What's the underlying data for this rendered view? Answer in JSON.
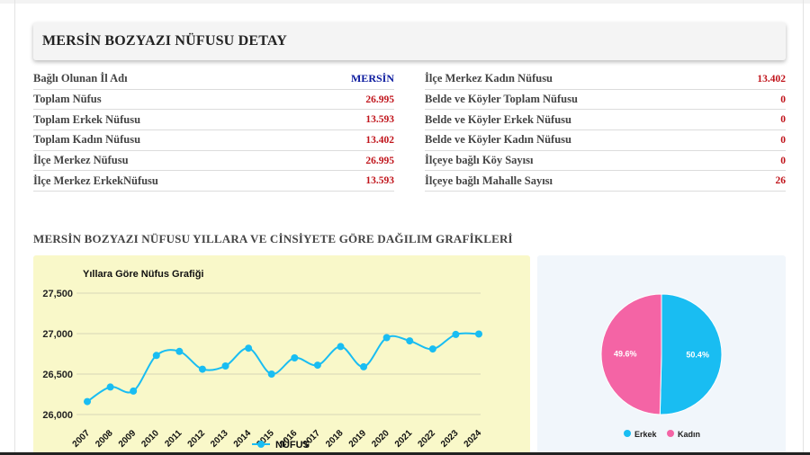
{
  "header": {
    "title": "MERSİN BOZYAZI NÜFUSU DETAY"
  },
  "stats_left": [
    {
      "label": "Bağlı Olunan İl Adı",
      "value": "MERSİN"
    },
    {
      "label": "Toplam Nüfus",
      "value": "26.995"
    },
    {
      "label": "Toplam Erkek Nüfusu",
      "value": "13.593"
    },
    {
      "label": "Toplam Kadın Nüfusu",
      "value": "13.402"
    },
    {
      "label": "İlçe Merkez Nüfusu",
      "value": "26.995"
    },
    {
      "label": "İlçe Merkez ErkekNüfusu",
      "value": "13.593"
    }
  ],
  "stats_right": [
    {
      "label": "İlçe Merkez Kadın Nüfusu",
      "value": "13.402"
    },
    {
      "label": "Belde ve Köyler Toplam Nüfusu",
      "value": "0"
    },
    {
      "label": "Belde ve Köyler Erkek Nüfusu",
      "value": "0"
    },
    {
      "label": "Belde ve Köyler Kadın Nüfusu",
      "value": "0"
    },
    {
      "label": "İlçeye bağlı Köy Sayısı",
      "value": "0"
    },
    {
      "label": "İlçeye bağlı Mahalle Sayısı",
      "value": "26"
    }
  ],
  "section_title": "MERSİN BOZYAZI NÜFUSU YILLARA VE CİNSİYETE GÖRE DAĞILIM GRAFİKLERİ",
  "colors": {
    "accent_red": "#c0141b",
    "accent_blue": "#0b1a9e",
    "line": "#19bdf2",
    "pie_male": "#19bdf2",
    "pie_female": "#f464a5"
  },
  "chart_data": [
    {
      "type": "line",
      "title": "Yıllara Göre Nüfus Grafiği",
      "categories": [
        "2007",
        "2008",
        "2009",
        "2010",
        "2011",
        "2012",
        "2013",
        "2014",
        "2015",
        "2016",
        "2017",
        "2018",
        "2019",
        "2020",
        "2021",
        "2022",
        "2023",
        "2024"
      ],
      "series": [
        {
          "name": "NÜFUS",
          "values": [
            26160,
            26340,
            26290,
            26730,
            26780,
            26560,
            26600,
            26820,
            26500,
            26700,
            26610,
            26840,
            26590,
            26950,
            26910,
            26810,
            26990,
            26995
          ]
        }
      ],
      "ylim": [
        26000,
        27500
      ],
      "yticks": [
        "26,000",
        "26,500",
        "27,000",
        "27,500"
      ],
      "legend": "bottom",
      "grid": true
    },
    {
      "type": "pie",
      "labels": [
        "Erkek",
        "Kadın"
      ],
      "values": [
        50.4,
        49.6
      ],
      "value_labels": [
        "50.4%",
        "49.6%"
      ],
      "legend": "bottom"
    }
  ]
}
